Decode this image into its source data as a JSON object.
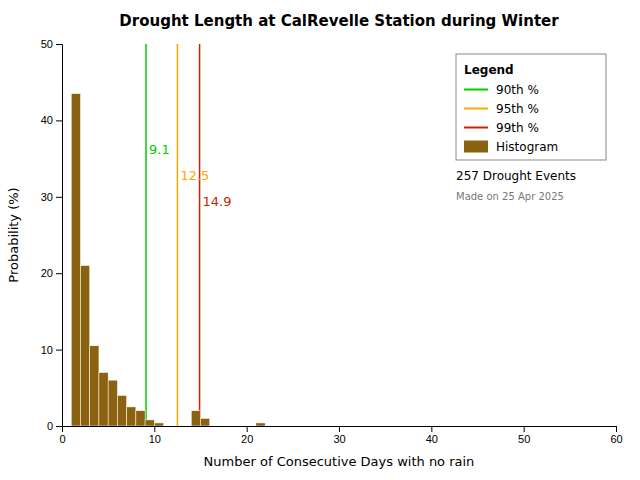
{
  "chart_data": {
    "type": "histogram",
    "title": "Drought Length at CalRevelle Station during Winter",
    "xlabel": "Number of Consecutive Days with no rain",
    "ylabel": "Probability (%)",
    "xlim": [
      0,
      60
    ],
    "ylim": [
      0,
      50
    ],
    "xticks": [
      0,
      10,
      20,
      30,
      40,
      50,
      60
    ],
    "yticks": [
      0,
      10,
      20,
      30,
      40,
      50
    ],
    "grid": false,
    "legend": "upper right",
    "legend_title": "Legend",
    "series": [
      {
        "name": "90th %",
        "type": "vline",
        "color": "#00CC00",
        "values": [
          9.1
        ],
        "data_labels": true
      },
      {
        "name": "95th %",
        "type": "vline",
        "color": "#FFA500",
        "values": [
          12.5
        ],
        "data_labels": true
      },
      {
        "name": "99th %",
        "type": "vline",
        "color": "#CC2200",
        "values": [
          14.9
        ],
        "data_labels": true
      },
      {
        "name": "Histogram",
        "type": "bar",
        "color": "#8B6310",
        "bins": [
          [
            1,
            2
          ],
          [
            2,
            3
          ],
          [
            3,
            4
          ],
          [
            4,
            5
          ],
          [
            5,
            6
          ],
          [
            6,
            7
          ],
          [
            7,
            8
          ],
          [
            8,
            9
          ],
          [
            9,
            10
          ],
          [
            10,
            11
          ],
          [
            14,
            15
          ],
          [
            15,
            16
          ],
          [
            21,
            22
          ]
        ],
        "values": [
          43.5,
          21.0,
          10.5,
          7.0,
          6.0,
          4.0,
          2.5,
          2.0,
          0.8,
          0.4,
          2.0,
          1.0,
          0.4
        ]
      }
    ],
    "annotations": [
      "257 Drought Events",
      "Made on 25 Apr 2025"
    ]
  }
}
